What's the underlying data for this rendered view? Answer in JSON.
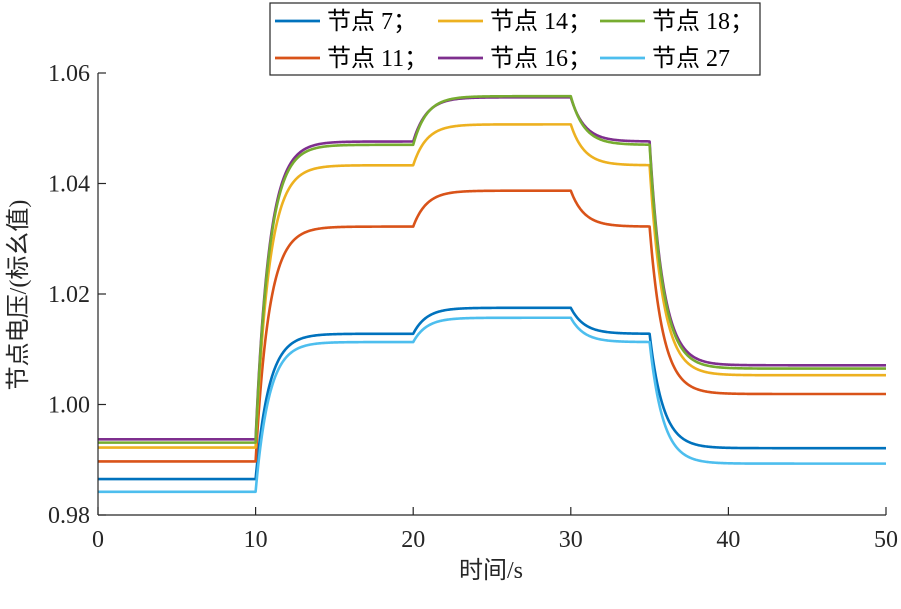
{
  "chart_data": {
    "type": "line",
    "title": "",
    "xlabel": "时间/s",
    "ylabel": "节点电压/(标幺值)",
    "xlim": [
      0,
      50
    ],
    "ylim": [
      0.98,
      1.06
    ],
    "x_ticks": [
      0,
      10,
      20,
      30,
      40,
      50
    ],
    "x_tick_labels": [
      "0",
      "10",
      "20",
      "30",
      "40",
      "50"
    ],
    "y_ticks": [
      0.98,
      1.0,
      1.02,
      1.04,
      1.06
    ],
    "y_tick_labels": [
      "0.98",
      "1.00",
      "1.02",
      "1.04",
      "1.06"
    ],
    "grid": false,
    "legend": {
      "placement": "top",
      "rows": [
        [
          "节点 7；",
          "节点 14；",
          "节点 18；"
        ],
        [
          "节点 11；",
          "节点 16；",
          "节点 27"
        ]
      ]
    },
    "series": [
      {
        "name": "节点 7",
        "color": "#0072BD",
        "levels": [
          0.9865,
          1.0128,
          1.0175,
          1.0128,
          0.9921
        ]
      },
      {
        "name": "节点 11",
        "color": "#D95319",
        "levels": [
          0.9897,
          1.0322,
          1.0387,
          1.0322,
          1.0019
        ]
      },
      {
        "name": "节点 14",
        "color": "#EDB120",
        "levels": [
          0.9922,
          1.0433,
          1.0507,
          1.0433,
          1.0053
        ]
      },
      {
        "name": "节点 16",
        "color": "#7E2F8E",
        "levels": [
          0.9937,
          1.0476,
          1.0556,
          1.0476,
          1.0071
        ]
      },
      {
        "name": "节点 18",
        "color": "#77AC30",
        "levels": [
          0.9931,
          1.047,
          1.0558,
          1.047,
          1.0065
        ]
      },
      {
        "name": "节点 27",
        "color": "#4DBEEE",
        "levels": [
          0.9842,
          1.0113,
          1.0157,
          1.0113,
          0.9893
        ]
      }
    ],
    "step_times": [
      0,
      10,
      20,
      30,
      35,
      50
    ]
  }
}
